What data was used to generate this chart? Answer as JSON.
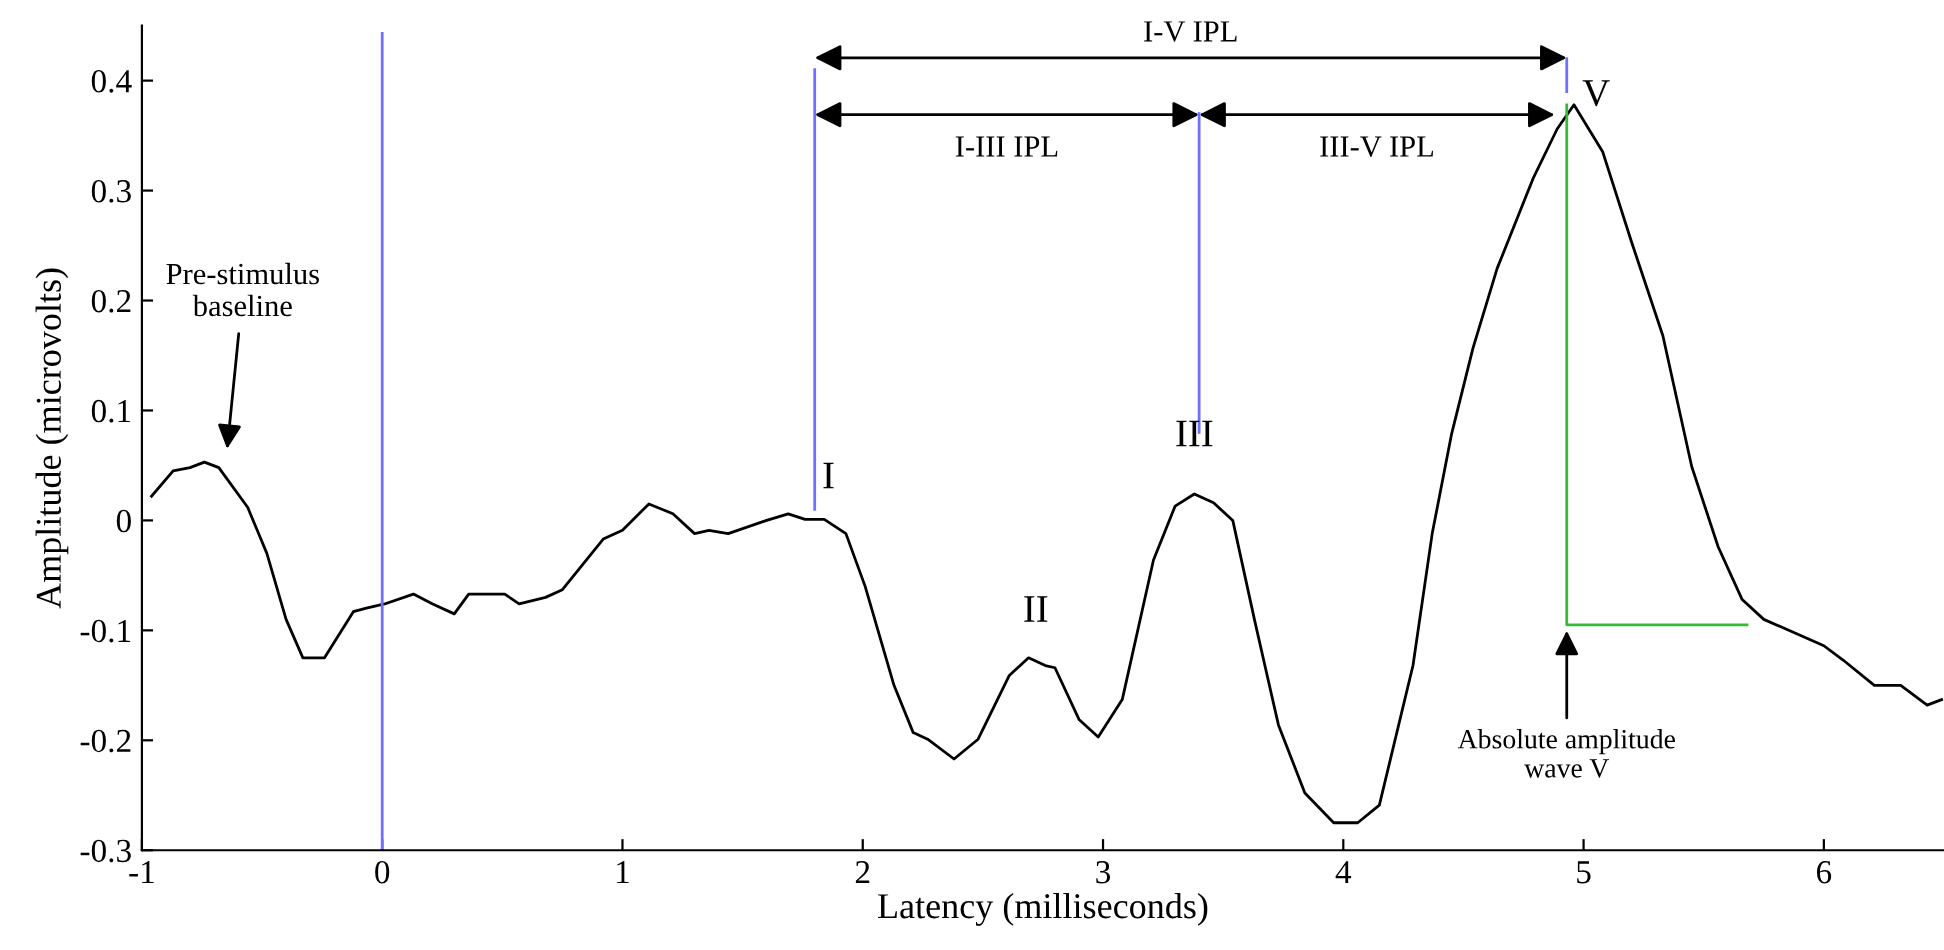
{
  "chart_data": {
    "type": "line",
    "xlabel": "Latency (milliseconds)",
    "ylabel": "Amplitude (microvolts)",
    "xlim": [
      -1,
      6.5
    ],
    "ylim": [
      -0.3,
      0.45
    ],
    "xticks": [
      -1,
      0,
      1,
      2,
      3,
      4,
      5,
      6
    ],
    "yticks": [
      -0.3,
      -0.2,
      -0.1,
      0,
      0.1,
      0.2,
      0.3,
      0.4
    ],
    "grid": false,
    "legend": false,
    "marker": "none",
    "line_style": "solid",
    "series": [
      {
        "color": "#000000",
        "x": [
          -0.96,
          -0.87,
          -0.8,
          -0.74,
          -0.68,
          -0.56,
          -0.48,
          -0.4,
          -0.33,
          -0.24,
          -0.12,
          -0.07,
          0.01,
          0.13,
          0.21,
          0.3,
          0.36,
          0.51,
          0.57,
          0.68,
          0.75,
          0.92,
          1.0,
          1.11,
          1.21,
          1.3,
          1.36,
          1.44,
          1.6,
          1.69,
          1.76,
          1.84,
          1.93,
          2.01,
          2.13,
          2.21,
          2.27,
          2.38,
          2.48,
          2.61,
          2.69,
          2.76,
          2.8,
          2.9,
          2.98,
          3.08,
          3.21,
          3.3,
          3.38,
          3.46,
          3.54,
          3.63,
          3.73,
          3.84,
          3.96,
          4.06,
          4.15,
          4.29,
          4.37,
          4.45,
          4.54,
          4.64,
          4.79,
          4.89,
          4.96,
          5.08,
          5.2,
          5.33,
          5.45,
          5.56,
          5.66,
          5.75,
          6.0,
          6.08,
          6.21,
          6.32,
          6.43,
          6.49
        ],
        "values": [
          0.022,
          0.045,
          0.048,
          0.053,
          0.048,
          0.012,
          -0.03,
          -0.09,
          -0.125,
          -0.125,
          -0.083,
          -0.08,
          -0.076,
          -0.067,
          -0.076,
          -0.085,
          -0.067,
          -0.067,
          -0.076,
          -0.07,
          -0.063,
          -0.017,
          -0.009,
          0.015,
          0.006,
          -0.012,
          -0.009,
          -0.012,
          0.0,
          0.006,
          0.001,
          0.001,
          -0.012,
          -0.06,
          -0.15,
          -0.193,
          -0.199,
          -0.217,
          -0.199,
          -0.141,
          -0.125,
          -0.132,
          -0.134,
          -0.181,
          -0.197,
          -0.163,
          -0.036,
          0.013,
          0.024,
          0.016,
          0.0,
          -0.09,
          -0.186,
          -0.248,
          -0.275,
          -0.275,
          -0.259,
          -0.132,
          -0.012,
          0.078,
          0.157,
          0.229,
          0.311,
          0.356,
          0.378,
          0.335,
          0.253,
          0.168,
          0.049,
          -0.024,
          -0.072,
          -0.09,
          -0.114,
          -0.127,
          -0.15,
          -0.15,
          -0.168,
          -0.163
        ]
      },
      {
        "color": "#7070ff",
        "x": [
          0,
          0
        ],
        "values": [
          -0.3,
          0.443
        ]
      },
      {
        "color": "#7070ff",
        "x": [
          1.8,
          1.8
        ],
        "values": [
          0.01,
          0.41
        ]
      },
      {
        "color": "#7070ff",
        "x": [
          3.4,
          3.4
        ],
        "values": [
          0.08,
          0.37
        ]
      },
      {
        "color": "#7070ff",
        "x": [
          4.93,
          4.93
        ],
        "values": [
          0.39,
          0.42
        ]
      },
      {
        "color": "#33bb33",
        "x": [
          4.93,
          4.93,
          5.68
        ],
        "values": [
          0.378,
          -0.095,
          -0.095
        ]
      }
    ],
    "annotations": [
      "Pre-stimulus\nbaseline",
      "I",
      "II",
      "III",
      "V",
      "I-V IPL",
      "I-III IPL",
      "III-V IPL",
      "Absolute amplitude\nwave V"
    ]
  }
}
